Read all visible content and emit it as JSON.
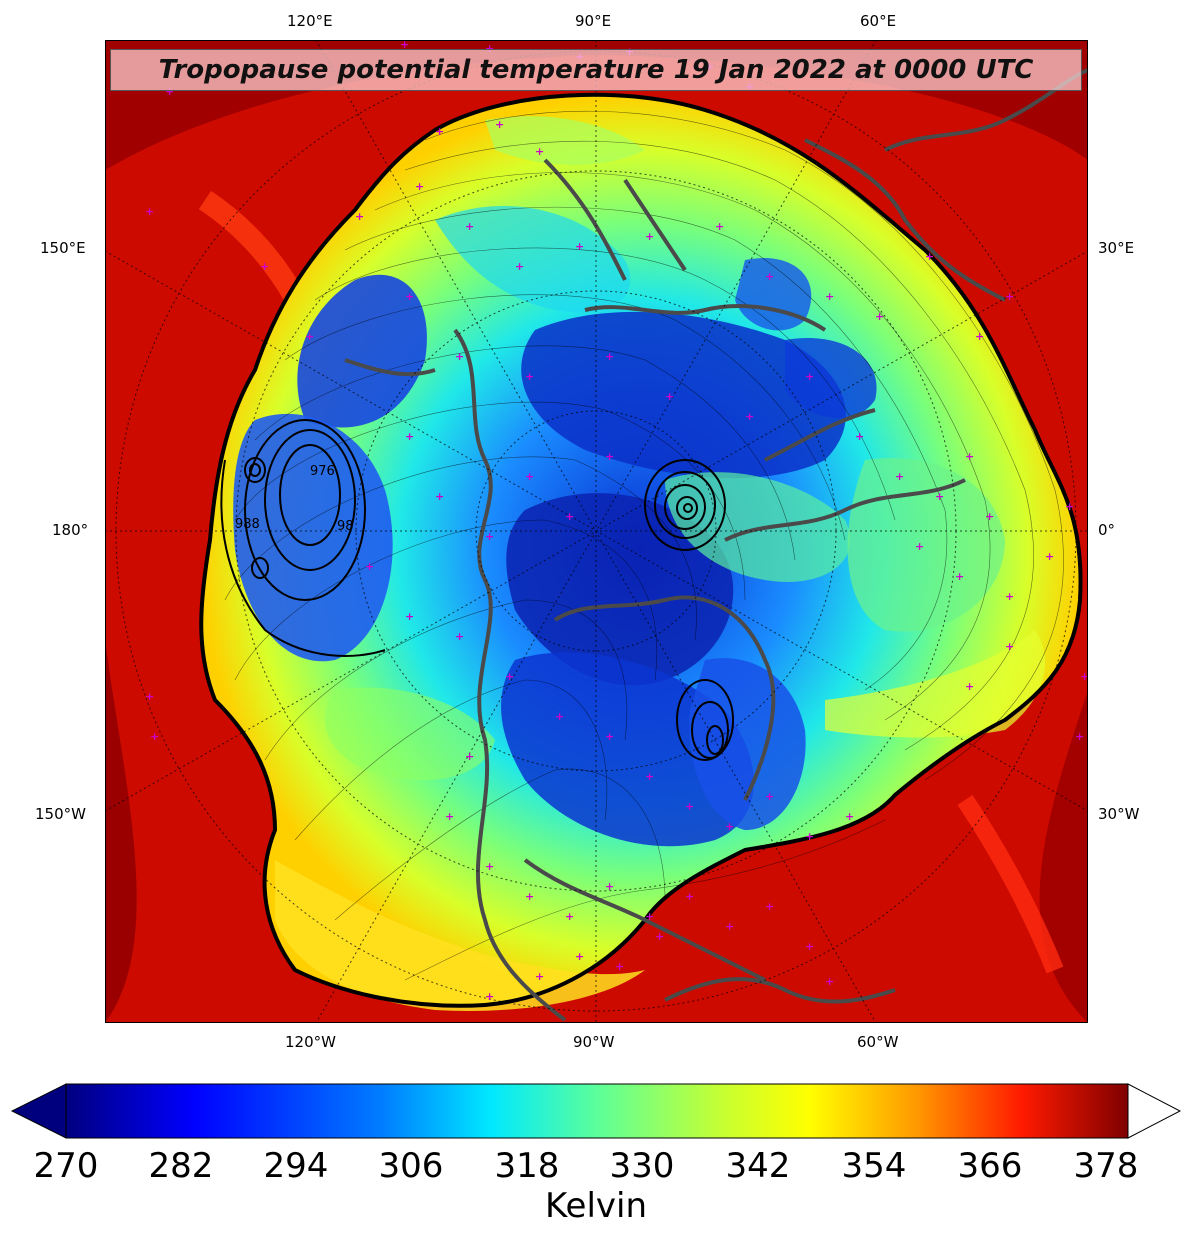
{
  "title": "Tropopause potential temperature 19 Jan 2022 at 0000 UTC",
  "map_labels": {
    "top": [
      "120°E",
      "90°E",
      "60°E"
    ],
    "bottom": [
      "120°W",
      "90°W",
      "60°W"
    ],
    "left": [
      "150°E",
      "180°",
      "150°W"
    ],
    "right": [
      "30°E",
      "0°",
      "30°W"
    ]
  },
  "colorbar": {
    "ticks": [
      "270",
      "282",
      "294",
      "306",
      "318",
      "330",
      "342",
      "354",
      "366",
      "378"
    ],
    "unit": "Kelvin",
    "min": 270,
    "max": 378,
    "colormap": [
      "#00007f",
      "#0000ff",
      "#007fff",
      "#00ffff",
      "#7fff7f",
      "#ffff00",
      "#ff7f00",
      "#ff0000",
      "#7f0000"
    ],
    "extend_low_color": "#00007f",
    "extend_high_color": "#ffffff"
  },
  "colors": {
    "station_marker": "#cc00cc",
    "coastline": "#4a4a4a",
    "contour": "#000000"
  },
  "pressure_contour_labels": [
    "976",
    "988",
    "98"
  ]
}
